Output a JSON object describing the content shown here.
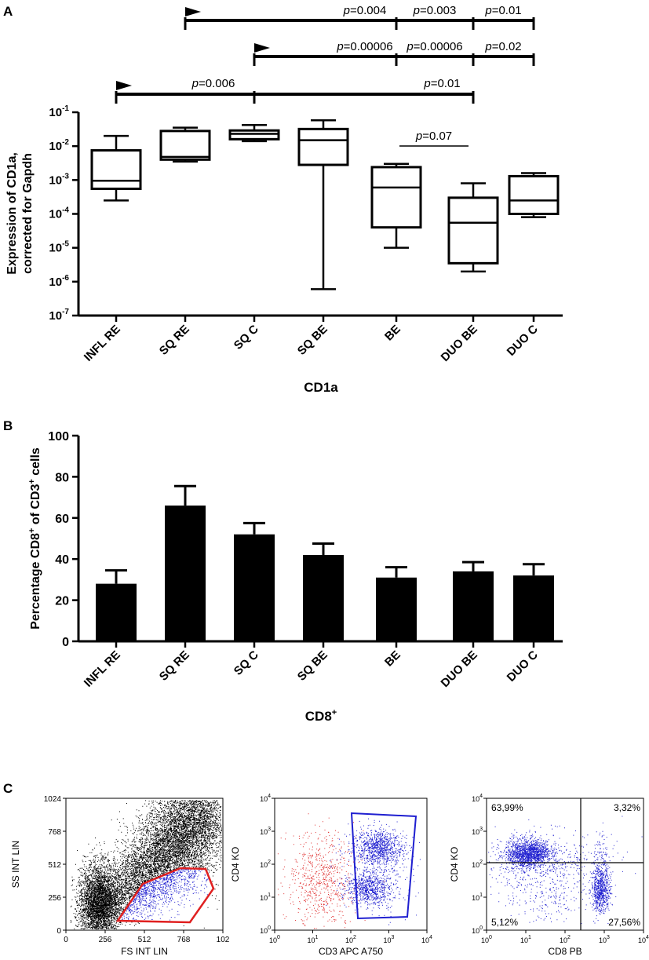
{
  "chart_data": [
    {
      "panel": "A",
      "type": "box",
      "title": "",
      "xlabel": "CD1a",
      "ylabel_line1": "Expression of CD1a,",
      "ylabel_line2": "corrected for Gapdh",
      "yscale": "log",
      "ylim": [
        1e-07,
        0.1
      ],
      "ytick_base": "10",
      "ytick_exponents": [
        "-7",
        "-6",
        "-5",
        "-4",
        "-3",
        "-2",
        "-1"
      ],
      "categories": [
        "INFL RE",
        "SQ RE",
        "SQ C",
        "SQ BE",
        "BE",
        "DUO BE",
        "DUO C"
      ],
      "boxes": [
        {
          "min": 0.00025,
          "q1": 0.00055,
          "median": 0.00095,
          "q3": 0.0075,
          "max": 0.02
        },
        {
          "min": 0.0035,
          "q1": 0.004,
          "median": 0.0048,
          "q3": 0.028,
          "max": 0.035
        },
        {
          "min": 0.014,
          "q1": 0.016,
          "median": 0.023,
          "q3": 0.029,
          "max": 0.042
        },
        {
          "min": 6e-07,
          "q1": 0.0028,
          "median": 0.015,
          "q3": 0.032,
          "max": 0.058
        },
        {
          "min": 1e-05,
          "q1": 4e-05,
          "median": 0.0006,
          "q3": 0.0024,
          "max": 0.003
        },
        {
          "min": 2e-06,
          "q1": 3.5e-06,
          "median": 5.5e-05,
          "q3": 0.0003,
          "max": 0.0008
        },
        {
          "min": 8e-05,
          "q1": 0.0001,
          "median": 0.00025,
          "q3": 0.0013,
          "max": 0.0016
        }
      ],
      "comparisons": [
        {
          "row": 1,
          "from": "SQ RE",
          "to": "DUO C",
          "ticks": [
            "BE",
            "DUO BE"
          ],
          "labels": [
            "p=0.004",
            "p=0.003",
            "p=0.01"
          ]
        },
        {
          "row": 2,
          "from": "SQ C",
          "to": "DUO C",
          "ticks": [
            "BE",
            "DUO BE"
          ],
          "labels": [
            "p=0.00006",
            "p=0.00006",
            "p=0.02"
          ]
        },
        {
          "row": 3,
          "from": "INFL RE",
          "to": "DUO BE",
          "ticks": [
            "SQ C"
          ],
          "labels": [
            "p=0.006",
            "p=0.01"
          ]
        },
        {
          "row": 4,
          "from": "BE",
          "to": "DUO BE",
          "ticks": [],
          "labels": [
            "p=0.07"
          ]
        }
      ]
    },
    {
      "panel": "B",
      "type": "bar",
      "title": "",
      "xlabel": "CD8",
      "xlabel_sup": "+",
      "ylabel_parts": [
        "Percentage CD8",
        "+",
        " of CD3",
        "+",
        " cells"
      ],
      "ylim": [
        0,
        100
      ],
      "yticks": [
        "0",
        "20",
        "40",
        "60",
        "80",
        "100"
      ],
      "categories": [
        "INFL RE",
        "SQ RE",
        "SQ C",
        "SQ BE",
        "BE",
        "DUO BE",
        "DUO C"
      ],
      "values": [
        28,
        66,
        52,
        42,
        31,
        34,
        32
      ],
      "errors": [
        6.5,
        9.5,
        5.5,
        5.5,
        5,
        4.5,
        5.5
      ]
    },
    {
      "panel": "C",
      "type": "scatter",
      "plots": [
        {
          "xlabel": "FS INT LIN",
          "ylabel": "SS INT LIN",
          "xticks": [
            "0",
            "256",
            "512",
            "768",
            "102"
          ],
          "yticks": [
            "0",
            "256",
            "512",
            "768",
            "1024"
          ],
          "xlim": [
            0,
            1024
          ],
          "ylim": [
            0,
            1024
          ],
          "colors": {
            "events": "#000000",
            "gated": "#1f1fd0",
            "gate": "#e02020"
          }
        },
        {
          "xlabel": "CD3 APC A750",
          "ylabel": "CD4 KO",
          "tick_base": "10",
          "tick_exponents": [
            "0",
            "1",
            "2",
            "3",
            "4"
          ],
          "colors": {
            "events": "#e03030",
            "gated": "#1f1fd0",
            "gate": "#1f1fd0"
          }
        },
        {
          "xlabel": "CD8 PB",
          "ylabel": "CD4 KO",
          "tick_base": "10",
          "tick_exponents": [
            "0",
            "1",
            "2",
            "3",
            "4"
          ],
          "quadrants": [
            "63,99%",
            "3,32%",
            "5,12%",
            "27,56%"
          ],
          "colors": {
            "events": "#1f1fd0",
            "gate": "#000000"
          }
        }
      ]
    }
  ],
  "panel_labels": [
    "A",
    "B",
    "C"
  ]
}
